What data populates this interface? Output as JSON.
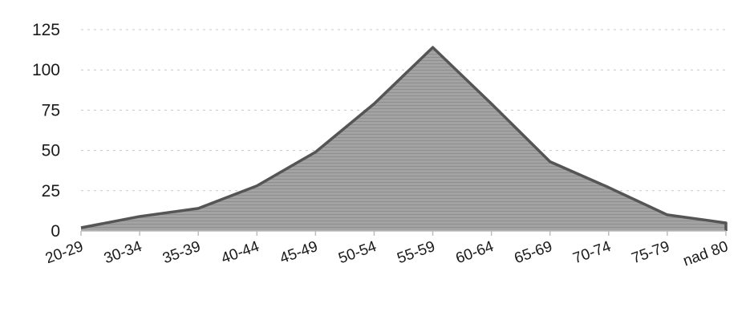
{
  "chart_data": {
    "type": "area",
    "title": "",
    "xlabel": "",
    "ylabel": "",
    "categories": [
      "20-29",
      "30-34",
      "35-39",
      "40-44",
      "45-49",
      "50-54",
      "55-59",
      "60-64",
      "65-69",
      "70-74",
      "75-79",
      "nad 80"
    ],
    "values": [
      2,
      9,
      14,
      28,
      49,
      79,
      114,
      79,
      43,
      27,
      10,
      5
    ],
    "ylim": [
      0,
      125
    ],
    "yticks": [
      "0",
      "25",
      "50",
      "75",
      "100",
      "125"
    ],
    "grid": true,
    "legend": "none",
    "colors": {
      "area_fill": "#9b9b9b",
      "area_stroke": "#555555",
      "grid": "#c8c8c8",
      "axis": "#bdbdbd"
    }
  }
}
